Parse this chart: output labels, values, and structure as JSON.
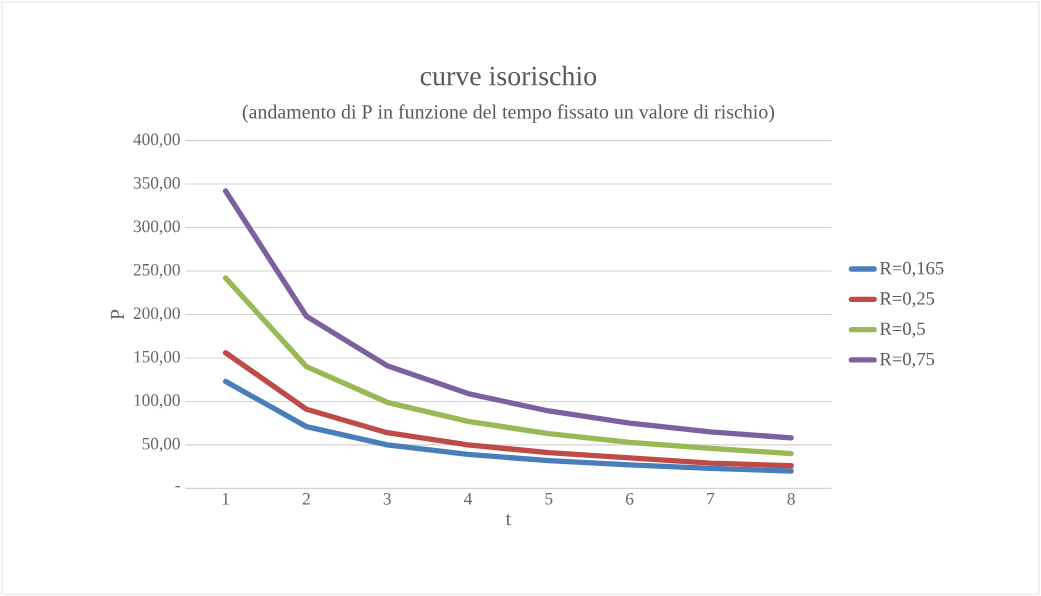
{
  "chart_data": {
    "type": "line",
    "title": "curve isorischio",
    "subtitle": "(andamento di P in funzione del tempo fissato un valore di rischio)",
    "xlabel": "t",
    "ylabel": "P",
    "categories": [
      "1",
      "2",
      "3",
      "4",
      "5",
      "6",
      "7",
      "8"
    ],
    "series": [
      {
        "name": "R=0,165",
        "color": "#4a7ebb",
        "values": [
          123,
          71,
          50,
          39,
          32,
          27,
          23,
          20
        ]
      },
      {
        "name": "R=0,25",
        "color": "#be4b48",
        "values": [
          156,
          91,
          64,
          50,
          41,
          35,
          29,
          26
        ]
      },
      {
        "name": "R=0,5",
        "color": "#98b954",
        "values": [
          242,
          140,
          99,
          77,
          63,
          53,
          46,
          40
        ]
      },
      {
        "name": "R=0,75",
        "color": "#7d60a0",
        "values": [
          342,
          198,
          141,
          109,
          89,
          75,
          65,
          58
        ]
      }
    ],
    "ylim": [
      0,
      400
    ],
    "yticks": [
      {
        "value": 0,
        "label": "-"
      },
      {
        "value": 50,
        "label": "50,00"
      },
      {
        "value": 100,
        "label": "100,00"
      },
      {
        "value": 150,
        "label": "150,00"
      },
      {
        "value": 200,
        "label": "200,00"
      },
      {
        "value": 250,
        "label": "250,00"
      },
      {
        "value": 300,
        "label": "300,00"
      },
      {
        "value": 350,
        "label": "350,00"
      },
      {
        "value": 400,
        "label": "400,00"
      }
    ],
    "grid": "y",
    "legend": "right",
    "marker": "none",
    "line_style": "solid"
  }
}
